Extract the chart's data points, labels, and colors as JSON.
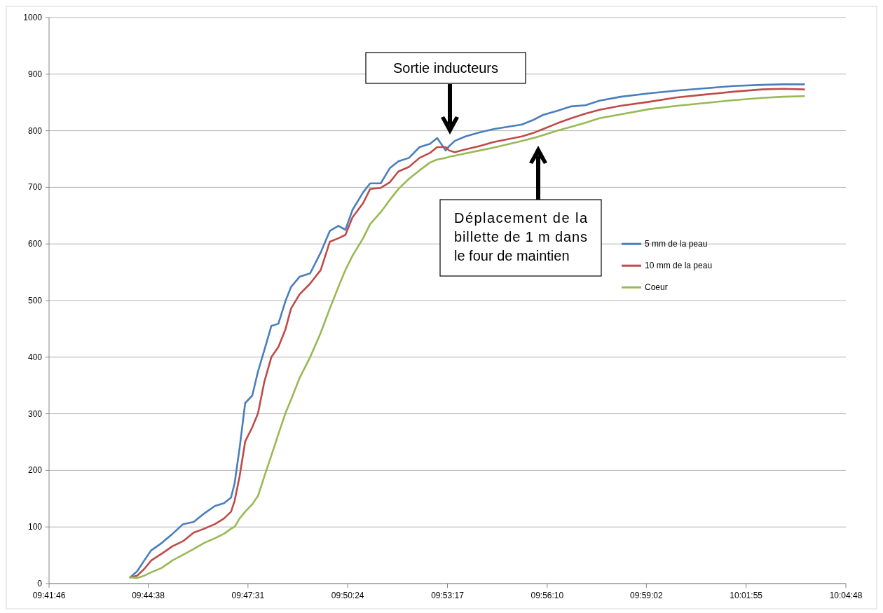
{
  "chart_data": {
    "type": "line",
    "x": [
      9.7352,
      9.7386,
      9.742,
      9.7454,
      9.7505,
      9.7556,
      9.7607,
      9.7658,
      9.7709,
      9.776,
      9.7804,
      9.7838,
      9.7855,
      9.7879,
      9.7906,
      9.794,
      9.7968,
      9.7998,
      9.8032,
      9.8066,
      9.81,
      9.8127,
      9.8168,
      9.8219,
      9.827,
      9.8314,
      9.8355,
      9.8389,
      9.8423,
      9.8474,
      9.8508,
      9.8559,
      9.8603,
      9.8644,
      9.8695,
      9.8746,
      9.8797,
      9.8831,
      9.8872,
      9.8889,
      9.8916,
      9.8967,
      9.9035,
      9.9103,
      9.9171,
      9.9239,
      9.9294,
      9.9341,
      9.9409,
      9.9477,
      9.9545,
      9.9613,
      9.9715,
      9.9851,
      9.9987,
      10.0123,
      10.0259,
      10.0395,
      10.0497,
      10.0599
    ],
    "series": [
      {
        "name": "5 mm de la peau",
        "color": "#4a7ebb",
        "values": [
          11,
          22,
          41,
          59,
          72,
          88,
          105,
          109,
          124,
          137,
          142,
          152,
          177,
          239,
          319,
          332,
          375,
          412,
          455,
          459,
          499,
          524,
          542,
          548,
          585,
          623,
          632,
          625,
          660,
          691,
          707,
          707,
          734,
          746,
          752,
          771,
          777,
          787,
          765,
          773,
          782,
          790,
          797,
          803,
          807,
          811,
          819,
          828,
          835,
          843,
          845,
          853,
          860,
          866,
          871,
          875,
          879,
          881,
          882,
          882
        ]
      },
      {
        "name": "10 mm de la peau",
        "color": "#be4b48",
        "values": [
          11,
          14,
          26,
          41,
          53,
          66,
          75,
          90,
          97,
          105,
          115,
          127,
          146,
          189,
          251,
          276,
          301,
          356,
          400,
          418,
          449,
          486,
          511,
          530,
          554,
          604,
          610,
          616,
          647,
          672,
          697,
          699,
          709,
          728,
          736,
          752,
          761,
          771,
          771,
          765,
          762,
          767,
          773,
          780,
          785,
          790,
          796,
          803,
          813,
          822,
          830,
          837,
          844,
          851,
          859,
          864,
          869,
          873,
          874,
          873
        ]
      },
      {
        "name": "Coeur",
        "color": "#98b954",
        "values": [
          11,
          10,
          14,
          20,
          28,
          41,
          51,
          61,
          72,
          80,
          88,
          97,
          100,
          115,
          127,
          140,
          155,
          189,
          226,
          264,
          301,
          325,
          363,
          400,
          443,
          486,
          524,
          554,
          579,
          610,
          635,
          656,
          678,
          697,
          715,
          730,
          744,
          749,
          752,
          754,
          756,
          760,
          765,
          770,
          776,
          782,
          787,
          792,
          800,
          807,
          814,
          822,
          829,
          838,
          844,
          849,
          854,
          858,
          860,
          861
        ]
      }
    ],
    "xlim": [
      9.696111,
      10.08
    ],
    "xticks": [
      {
        "value": 9.696111,
        "label": "09:41:46"
      },
      {
        "value": 9.743889,
        "label": "09:44:38"
      },
      {
        "value": 9.791944,
        "label": "09:47:31"
      },
      {
        "value": 9.84,
        "label": "09:50:24"
      },
      {
        "value": 9.888056,
        "label": "09:53:17"
      },
      {
        "value": 9.936111,
        "label": "09:56:10"
      },
      {
        "value": 9.983889,
        "label": "09:59:02"
      },
      {
        "value": 10.031944,
        "label": "10:01:55"
      },
      {
        "value": 10.08,
        "label": "10:04:48"
      }
    ],
    "ylim": [
      0,
      1000
    ],
    "yticks": [
      0,
      100,
      200,
      300,
      400,
      500,
      600,
      700,
      800,
      900,
      1000
    ],
    "grid": "y",
    "legend": "right",
    "marker": "none",
    "line_style": "solid",
    "annotations": [
      "Sortie inducteurs",
      "Déplacement de la billette de 1 m dans le four de maintien"
    ]
  }
}
